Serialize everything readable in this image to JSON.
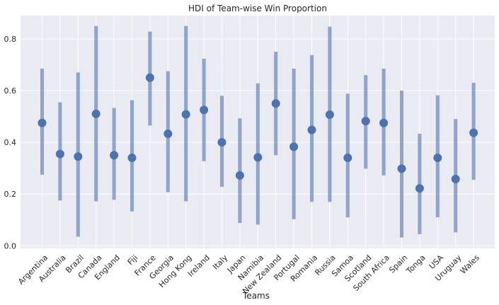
{
  "chart_data": {
    "type": "scatter",
    "title": "HDI of Team-wise Win Proportion",
    "xlabel": "Teams",
    "ylabel": "",
    "ylim": [
      -0.01,
      0.89
    ],
    "yticks": [
      "0.0",
      "0.2",
      "0.4",
      "0.6",
      "0.8"
    ],
    "grid": true,
    "colors": {
      "point": "#4C72B0",
      "interval": "#4C72B0",
      "background": "#EAEAF2",
      "grid": "#FFFFFF"
    },
    "categories": [
      "Argentina",
      "Australia",
      "Brazil",
      "Canada",
      "England",
      "Fiji",
      "France",
      "Georgia",
      "Hong Kong",
      "Ireland",
      "Italy",
      "Japan",
      "Namibia",
      "New Zealand",
      "Portugal",
      "Romania",
      "Russia",
      "Samoa",
      "Scotland",
      "South Africa",
      "Spain",
      "Tonga",
      "USA",
      "Uruguay",
      "Wales"
    ],
    "mean": [
      0.475,
      0.355,
      0.345,
      0.51,
      0.35,
      0.34,
      0.65,
      0.433,
      0.508,
      0.525,
      0.4,
      0.272,
      0.342,
      0.55,
      0.383,
      0.448,
      0.507,
      0.34,
      0.482,
      0.475,
      0.298,
      0.222,
      0.34,
      0.258,
      0.437
    ],
    "hdi_low": [
      0.275,
      0.175,
      0.035,
      0.172,
      0.178,
      0.133,
      0.465,
      0.207,
      0.172,
      0.327,
      0.228,
      0.088,
      0.082,
      0.35,
      0.103,
      0.17,
      0.17,
      0.11,
      0.298,
      0.272,
      0.032,
      0.045,
      0.11,
      0.052,
      0.255
    ],
    "hdi_high": [
      0.685,
      0.555,
      0.67,
      0.85,
      0.533,
      0.563,
      0.828,
      0.675,
      0.85,
      0.723,
      0.58,
      0.493,
      0.628,
      0.75,
      0.685,
      0.737,
      0.847,
      0.588,
      0.66,
      0.685,
      0.6,
      0.433,
      0.582,
      0.49,
      0.63
    ]
  }
}
